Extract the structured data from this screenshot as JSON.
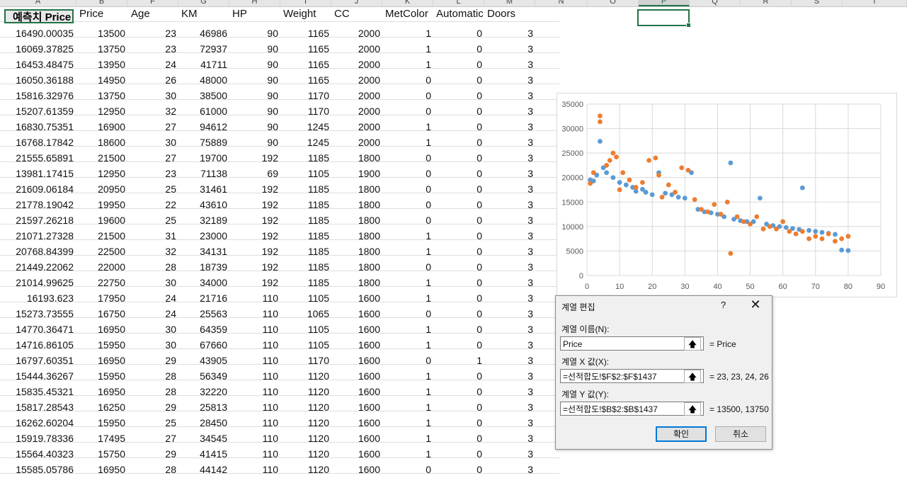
{
  "column_letters": [
    "A",
    "B",
    "F",
    "G",
    "H",
    "I",
    "J",
    "K",
    "L",
    "M",
    "N",
    "O",
    "P",
    "Q",
    "R",
    "S",
    "T"
  ],
  "selected_column": "P",
  "headers": {
    "pred": "예측치 Price",
    "price": "Price",
    "age": "Age",
    "km": "KM",
    "hp": "HP",
    "weight": "Weight",
    "cc": "CC",
    "metcolor": "MetColor",
    "automatic": "Automatic",
    "doors": "Doors"
  },
  "rows": [
    [
      "16490.00035",
      "13500",
      "23",
      "46986",
      "90",
      "1165",
      "2000",
      "1",
      "0",
      "3"
    ],
    [
      "16069.37825",
      "13750",
      "23",
      "72937",
      "90",
      "1165",
      "2000",
      "1",
      "0",
      "3"
    ],
    [
      "16453.48475",
      "13950",
      "24",
      "41711",
      "90",
      "1165",
      "2000",
      "1",
      "0",
      "3"
    ],
    [
      "16050.36188",
      "14950",
      "26",
      "48000",
      "90",
      "1165",
      "2000",
      "0",
      "0",
      "3"
    ],
    [
      "15816.32976",
      "13750",
      "30",
      "38500",
      "90",
      "1170",
      "2000",
      "0",
      "0",
      "3"
    ],
    [
      "15207.61359",
      "12950",
      "32",
      "61000",
      "90",
      "1170",
      "2000",
      "0",
      "0",
      "3"
    ],
    [
      "16830.75351",
      "16900",
      "27",
      "94612",
      "90",
      "1245",
      "2000",
      "1",
      "0",
      "3"
    ],
    [
      "16768.17842",
      "18600",
      "30",
      "75889",
      "90",
      "1245",
      "2000",
      "1",
      "0",
      "3"
    ],
    [
      "21555.65891",
      "21500",
      "27",
      "19700",
      "192",
      "1185",
      "1800",
      "0",
      "0",
      "3"
    ],
    [
      "13981.17415",
      "12950",
      "23",
      "71138",
      "69",
      "1105",
      "1900",
      "0",
      "0",
      "3"
    ],
    [
      "21609.06184",
      "20950",
      "25",
      "31461",
      "192",
      "1185",
      "1800",
      "0",
      "0",
      "3"
    ],
    [
      "21778.19042",
      "19950",
      "22",
      "43610",
      "192",
      "1185",
      "1800",
      "0",
      "0",
      "3"
    ],
    [
      "21597.26218",
      "19600",
      "25",
      "32189",
      "192",
      "1185",
      "1800",
      "0",
      "0",
      "3"
    ],
    [
      "21071.27328",
      "21500",
      "31",
      "23000",
      "192",
      "1185",
      "1800",
      "1",
      "0",
      "3"
    ],
    [
      "20768.84399",
      "22500",
      "32",
      "34131",
      "192",
      "1185",
      "1800",
      "1",
      "0",
      "3"
    ],
    [
      "21449.22062",
      "22000",
      "28",
      "18739",
      "192",
      "1185",
      "1800",
      "0",
      "0",
      "3"
    ],
    [
      "21014.99625",
      "22750",
      "30",
      "34000",
      "192",
      "1185",
      "1800",
      "1",
      "0",
      "3"
    ],
    [
      "16193.623",
      "17950",
      "24",
      "21716",
      "110",
      "1105",
      "1600",
      "1",
      "0",
      "3"
    ],
    [
      "15273.73555",
      "16750",
      "24",
      "25563",
      "110",
      "1065",
      "1600",
      "0",
      "0",
      "3"
    ],
    [
      "14770.36471",
      "16950",
      "30",
      "64359",
      "110",
      "1105",
      "1600",
      "1",
      "0",
      "3"
    ],
    [
      "14716.86105",
      "15950",
      "30",
      "67660",
      "110",
      "1105",
      "1600",
      "1",
      "0",
      "3"
    ],
    [
      "16797.60351",
      "16950",
      "29",
      "43905",
      "110",
      "1170",
      "1600",
      "0",
      "1",
      "3"
    ],
    [
      "15444.36267",
      "15950",
      "28",
      "56349",
      "110",
      "1120",
      "1600",
      "1",
      "0",
      "3"
    ],
    [
      "15835.45321",
      "16950",
      "28",
      "32220",
      "110",
      "1120",
      "1600",
      "1",
      "0",
      "3"
    ],
    [
      "15817.28543",
      "16250",
      "29",
      "25813",
      "110",
      "1120",
      "1600",
      "1",
      "0",
      "3"
    ],
    [
      "16262.60204",
      "15950",
      "25",
      "28450",
      "110",
      "1120",
      "1600",
      "1",
      "0",
      "3"
    ],
    [
      "15919.78336",
      "17495",
      "27",
      "34545",
      "110",
      "1120",
      "1600",
      "1",
      "0",
      "3"
    ],
    [
      "15564.40323",
      "15750",
      "29",
      "41415",
      "110",
      "1120",
      "1600",
      "1",
      "0",
      "3"
    ],
    [
      "15585.05786",
      "16950",
      "28",
      "44142",
      "110",
      "1120",
      "1600",
      "0",
      "0",
      "3"
    ]
  ],
  "chart_data": {
    "type": "scatter",
    "title": "",
    "xlabel": "",
    "ylabel": "",
    "xlim": [
      0,
      90
    ],
    "ylim": [
      0,
      35000
    ],
    "x_ticks": [
      0,
      10,
      20,
      30,
      40,
      50,
      60,
      70,
      80,
      90
    ],
    "y_ticks": [
      0,
      5000,
      10000,
      15000,
      20000,
      25000,
      30000,
      35000
    ],
    "grid": true,
    "legend": "none",
    "series": [
      {
        "name": "예측치 Price",
        "color": "#5b9bd5",
        "points": [
          [
            1,
            19500
          ],
          [
            2,
            19300
          ],
          [
            3,
            20500
          ],
          [
            4,
            27400
          ],
          [
            5,
            22000
          ],
          [
            6,
            21000
          ],
          [
            8,
            20000
          ],
          [
            10,
            19000
          ],
          [
            12,
            18500
          ],
          [
            14,
            18000
          ],
          [
            15,
            17200
          ],
          [
            17,
            17600
          ],
          [
            18,
            17000
          ],
          [
            20,
            16500
          ],
          [
            22,
            21000
          ],
          [
            24,
            16800
          ],
          [
            26,
            16500
          ],
          [
            28,
            16000
          ],
          [
            30,
            15800
          ],
          [
            32,
            21000
          ],
          [
            34,
            13500
          ],
          [
            36,
            13000
          ],
          [
            38,
            12800
          ],
          [
            40,
            12500
          ],
          [
            42,
            12000
          ],
          [
            44,
            23000
          ],
          [
            45,
            11500
          ],
          [
            47,
            11200
          ],
          [
            49,
            11000
          ],
          [
            51,
            11000
          ],
          [
            53,
            15800
          ],
          [
            55,
            10500
          ],
          [
            57,
            10200
          ],
          [
            59,
            10000
          ],
          [
            61,
            9800
          ],
          [
            63,
            9600
          ],
          [
            65,
            9400
          ],
          [
            66,
            17900
          ],
          [
            68,
            9200
          ],
          [
            70,
            9000
          ],
          [
            72,
            8800
          ],
          [
            74,
            8600
          ],
          [
            76,
            8400
          ],
          [
            78,
            5200
          ],
          [
            80,
            5100
          ]
        ]
      },
      {
        "name": "Price",
        "color": "#ed7d31",
        "points": [
          [
            1,
            18800
          ],
          [
            2,
            21000
          ],
          [
            4,
            32600
          ],
          [
            4,
            31400
          ],
          [
            6,
            22500
          ],
          [
            7,
            23500
          ],
          [
            8,
            25000
          ],
          [
            9,
            24200
          ],
          [
            10,
            17500
          ],
          [
            11,
            21000
          ],
          [
            13,
            19500
          ],
          [
            15,
            18000
          ],
          [
            17,
            19000
          ],
          [
            19,
            23500
          ],
          [
            21,
            24000
          ],
          [
            22,
            20500
          ],
          [
            23,
            16000
          ],
          [
            25,
            18500
          ],
          [
            27,
            17000
          ],
          [
            29,
            22000
          ],
          [
            31,
            21500
          ],
          [
            33,
            15500
          ],
          [
            35,
            13500
          ],
          [
            37,
            13000
          ],
          [
            39,
            14500
          ],
          [
            41,
            12500
          ],
          [
            43,
            15000
          ],
          [
            44,
            4500
          ],
          [
            46,
            12000
          ],
          [
            48,
            11000
          ],
          [
            50,
            10500
          ],
          [
            52,
            12000
          ],
          [
            54,
            9500
          ],
          [
            56,
            10000
          ],
          [
            58,
            9500
          ],
          [
            60,
            11000
          ],
          [
            62,
            9000
          ],
          [
            64,
            8500
          ],
          [
            66,
            9000
          ],
          [
            68,
            7500
          ],
          [
            70,
            8000
          ],
          [
            72,
            7500
          ],
          [
            74,
            8500
          ],
          [
            76,
            7000
          ],
          [
            78,
            7500
          ],
          [
            80,
            8000
          ]
        ]
      }
    ]
  },
  "dialog": {
    "title": "계열 편집",
    "help": "?",
    "close": "✕",
    "series_name_label": "계열 이름(N):",
    "series_name_value": "Price",
    "series_name_result": "= Price",
    "x_values_label": "계열 X 값(X):",
    "x_values_value": "=선적합도!$F$2:$F$1437",
    "x_values_result": "= 23, 23, 24, 26",
    "y_values_label": "계열 Y 값(Y):",
    "y_values_value": "=선적합도!$B$2:$B$1437",
    "y_values_result": "= 13500, 13750",
    "ref_button": "🡅",
    "ok": "확인",
    "cancel": "취소"
  }
}
